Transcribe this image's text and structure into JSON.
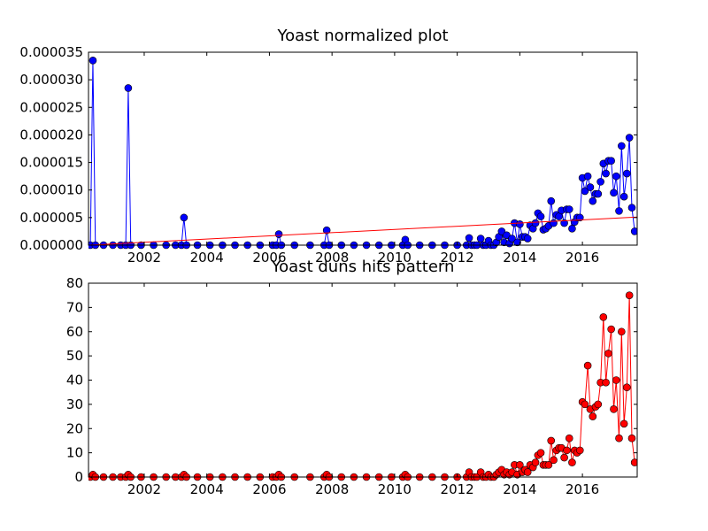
{
  "chart_data": [
    {
      "type": "line",
      "title": "Yoast normalized plot",
      "x": [
        2000.28,
        2000.36,
        2000.44,
        2000.7,
        2001.0,
        2001.25,
        2001.41,
        2001.49,
        2001.57,
        2001.9,
        2002.3,
        2002.7,
        2003.0,
        2003.19,
        2003.27,
        2003.35,
        2003.7,
        2004.1,
        2004.5,
        2004.9,
        2005.3,
        2005.7,
        2006.1,
        2006.22,
        2006.3,
        2006.38,
        2006.8,
        2007.3,
        2007.75,
        2007.83,
        2007.91,
        2008.3,
        2008.7,
        2009.1,
        2009.5,
        2009.9,
        2010.26,
        2010.34,
        2010.42,
        2010.8,
        2011.2,
        2011.6,
        2012.0,
        2012.3,
        2012.38,
        2012.46,
        2012.55,
        2012.63,
        2012.75,
        2012.83,
        2012.92,
        2013.0,
        2013.08,
        2013.17,
        2013.25,
        2013.33,
        2013.42,
        2013.5,
        2013.58,
        2013.67,
        2013.75,
        2013.83,
        2013.92,
        2014.0,
        2014.08,
        2014.17,
        2014.25,
        2014.33,
        2014.42,
        2014.5,
        2014.58,
        2014.67,
        2014.75,
        2014.83,
        2014.92,
        2015.0,
        2015.08,
        2015.17,
        2015.25,
        2015.33,
        2015.42,
        2015.5,
        2015.58,
        2015.67,
        2015.75,
        2015.83,
        2015.92,
        2016.0,
        2016.08,
        2016.17,
        2016.25,
        2016.33,
        2016.42,
        2016.5,
        2016.58,
        2016.67,
        2016.75,
        2016.83,
        2016.92,
        2017.0,
        2017.08,
        2017.17,
        2017.25,
        2017.33,
        2017.42,
        2017.5,
        2017.58,
        2017.67
      ],
      "series": [
        {
          "color": "#0000ff",
          "marker": true,
          "values": [
            0,
            3.35e-05,
            0,
            0,
            0,
            0,
            0,
            2.85e-05,
            0,
            0,
            0,
            0,
            0,
            0,
            5e-06,
            0,
            0,
            0,
            0,
            0,
            0,
            0,
            0,
            0,
            2e-06,
            0,
            0,
            0,
            0,
            2.7e-06,
            0,
            0,
            0,
            0,
            0,
            0,
            0,
            1e-06,
            0,
            0,
            0,
            0,
            0,
            0,
            1.3e-06,
            0,
            0,
            0,
            1.2e-06,
            0,
            0,
            8e-07,
            0,
            0,
            5e-07,
            1.5e-06,
            2.5e-06,
            5e-07,
            1.8e-06,
            3e-07,
            1.2e-06,
            4e-06,
            5e-07,
            3.8e-06,
            1.5e-06,
            1.5e-06,
            1.2e-06,
            3.6e-06,
            3e-06,
            4e-06,
            5.8e-06,
            5.2e-06,
            2.8e-06,
            3e-06,
            3.5e-06,
            8e-06,
            4e-06,
            5.5e-06,
            5.2e-06,
            6.3e-06,
            4e-06,
            6.5e-06,
            6.5e-06,
            3e-06,
            4.2e-06,
            5e-06,
            5e-06,
            1.22e-05,
            9.8e-06,
            1.25e-05,
            1.05e-05,
            8e-06,
            9.3e-06,
            9.3e-06,
            1.15e-05,
            1.48e-05,
            1.3e-05,
            1.53e-05,
            1.53e-05,
            9.5e-06,
            1.25e-05,
            6.2e-06,
            1.8e-05,
            8.8e-06,
            1.3e-05,
            1.95e-05,
            6.8e-06,
            2.5e-06
          ]
        },
        {
          "color": "#ff0000",
          "marker": false,
          "x": [
            2000.22,
            2017.75
          ],
          "values": [
            0,
            5.1e-06
          ]
        }
      ],
      "xlim": [
        2000.22,
        2017.75
      ],
      "xticks": [
        2002,
        2004,
        2006,
        2008,
        2010,
        2012,
        2014,
        2016
      ],
      "ylim": [
        0,
        3.5e-05
      ],
      "yticks": [
        {
          "value": 0,
          "label": "0.000000"
        },
        {
          "value": 5e-06,
          "label": "0.000005"
        },
        {
          "value": 1e-05,
          "label": "0.000010"
        },
        {
          "value": 1.5e-05,
          "label": "0.000015"
        },
        {
          "value": 2e-05,
          "label": "0.000020"
        },
        {
          "value": 2.5e-05,
          "label": "0.000025"
        },
        {
          "value": 3e-05,
          "label": "0.000030"
        },
        {
          "value": 3.5e-05,
          "label": "0.000035"
        }
      ]
    },
    {
      "type": "line",
      "title": "Yoast duns hits pattern",
      "x": [
        2000.28,
        2000.36,
        2000.44,
        2000.7,
        2001.0,
        2001.25,
        2001.41,
        2001.49,
        2001.57,
        2001.9,
        2002.3,
        2002.7,
        2003.0,
        2003.19,
        2003.27,
        2003.35,
        2003.7,
        2004.1,
        2004.5,
        2004.9,
        2005.3,
        2005.7,
        2006.1,
        2006.22,
        2006.3,
        2006.38,
        2006.8,
        2007.3,
        2007.75,
        2007.83,
        2007.91,
        2008.3,
        2008.7,
        2009.1,
        2009.5,
        2009.9,
        2010.26,
        2010.34,
        2010.42,
        2010.8,
        2011.2,
        2011.6,
        2012.0,
        2012.3,
        2012.38,
        2012.46,
        2012.55,
        2012.63,
        2012.75,
        2012.83,
        2012.92,
        2013.0,
        2013.08,
        2013.17,
        2013.25,
        2013.33,
        2013.42,
        2013.5,
        2013.58,
        2013.67,
        2013.75,
        2013.83,
        2013.92,
        2014.0,
        2014.08,
        2014.17,
        2014.25,
        2014.33,
        2014.42,
        2014.5,
        2014.58,
        2014.67,
        2014.75,
        2014.83,
        2014.92,
        2015.0,
        2015.08,
        2015.17,
        2015.25,
        2015.33,
        2015.42,
        2015.5,
        2015.58,
        2015.67,
        2015.75,
        2015.83,
        2015.92,
        2016.0,
        2016.08,
        2016.17,
        2016.25,
        2016.33,
        2016.42,
        2016.5,
        2016.58,
        2016.67,
        2016.75,
        2016.83,
        2016.92,
        2017.0,
        2017.08,
        2017.17,
        2017.25,
        2017.33,
        2017.42,
        2017.5,
        2017.58,
        2017.67
      ],
      "series": [
        {
          "color": "#ff0000",
          "marker": true,
          "values": [
            0,
            1,
            0,
            0,
            0,
            0,
            0,
            1,
            0,
            0,
            0,
            0,
            0,
            0,
            1,
            0,
            0,
            0,
            0,
            0,
            0,
            0,
            0,
            0,
            1,
            0,
            0,
            0,
            0,
            1,
            0,
            0,
            0,
            0,
            0,
            0,
            0,
            1,
            0,
            0,
            0,
            0,
            0,
            0,
            2,
            0,
            0,
            0,
            2,
            0,
            0,
            1,
            0,
            0,
            1,
            2,
            3,
            1,
            2,
            1,
            2,
            5,
            1,
            5,
            2,
            3,
            2,
            5,
            4,
            6,
            9,
            10,
            5,
            5,
            5,
            15,
            7,
            11,
            12,
            12,
            8,
            11,
            16,
            6,
            11,
            10,
            11,
            31,
            30,
            46,
            28,
            25,
            29,
            30,
            39,
            66,
            39,
            51,
            61,
            28,
            40,
            16,
            60,
            22,
            37,
            75,
            16,
            6
          ]
        }
      ],
      "xlim": [
        2000.22,
        2017.75
      ],
      "xticks": [
        2002,
        2004,
        2006,
        2008,
        2010,
        2012,
        2014,
        2016
      ],
      "ylim": [
        0,
        80
      ],
      "yticks": [
        0,
        10,
        20,
        30,
        40,
        50,
        60,
        70,
        80
      ]
    }
  ]
}
